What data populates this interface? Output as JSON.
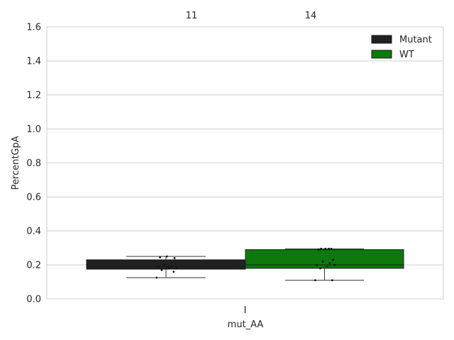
{
  "chart_data": {
    "type": "box",
    "xlabel": "mut_AA",
    "ylabel": "PercentGpA",
    "categories": [
      "I"
    ],
    "ylim": [
      0,
      1.6
    ],
    "yticks": [
      "0.0",
      "0.2",
      "0.4",
      "0.6",
      "0.8",
      "1.0",
      "1.2",
      "1.4",
      "1.6"
    ],
    "grid": true,
    "legend": {
      "placement": "top-right",
      "entries": [
        "Mutant",
        "WT"
      ]
    },
    "annotations": [
      "11",
      "14"
    ],
    "series": [
      {
        "name": "Mutant",
        "color": "#212121",
        "count_label": "11",
        "box": {
          "whisker_low": 0.125,
          "q1": 0.175,
          "median": 0.19,
          "q3": 0.23,
          "whisker_high": 0.25
        },
        "points": [
          0.125,
          0.16,
          0.17,
          0.18,
          0.18,
          0.19,
          0.19,
          0.2,
          0.24,
          0.245,
          0.25
        ]
      },
      {
        "name": "WT",
        "color": "#0b7a0b",
        "count_label": "14",
        "box": {
          "whisker_low": 0.11,
          "q1": 0.18,
          "median": 0.2,
          "q3": 0.29,
          "whisker_high": 0.295
        },
        "points": [
          0.11,
          0.11,
          0.18,
          0.19,
          0.2,
          0.2,
          0.21,
          0.22,
          0.23,
          0.29,
          0.295,
          0.295,
          0.295,
          0.295
        ]
      }
    ]
  }
}
